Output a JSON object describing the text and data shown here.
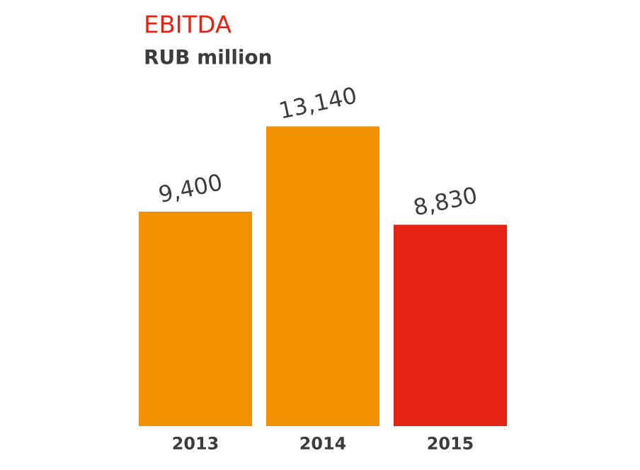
{
  "chart_data": {
    "type": "bar",
    "title": "EBITDA",
    "subtitle": "RUB million",
    "categories": [
      "2013",
      "2014",
      "2015"
    ],
    "values": [
      9400,
      13140,
      8830
    ],
    "value_labels": [
      "9,400",
      "13,140",
      "8,830"
    ],
    "colors": [
      "#f39200",
      "#f39200",
      "#e42313"
    ]
  }
}
